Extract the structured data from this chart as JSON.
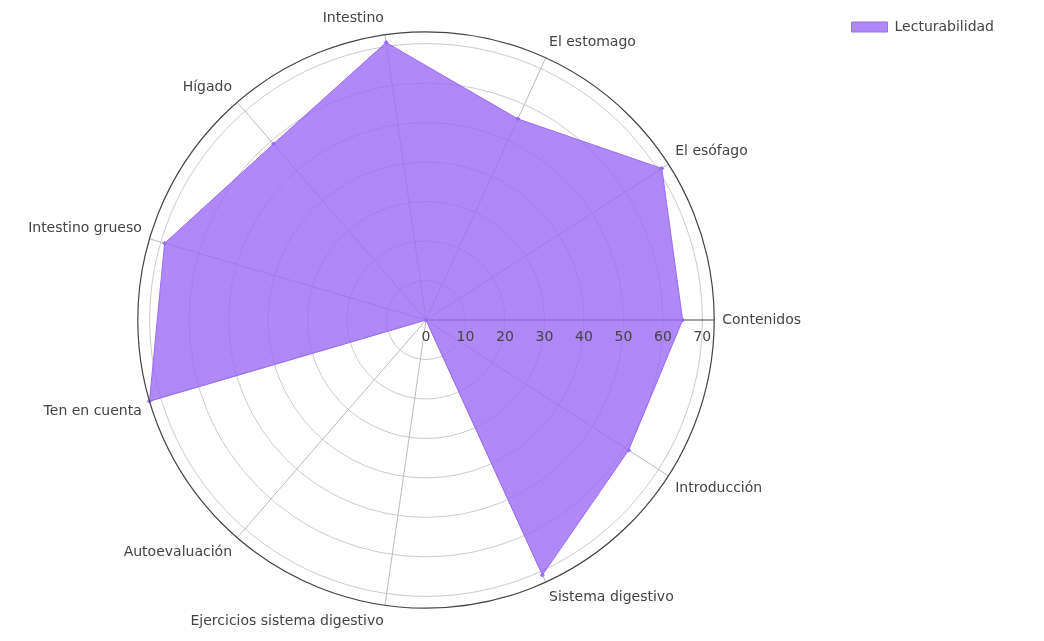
{
  "chart_data": {
    "type": "radar",
    "categories": [
      "Contenidos",
      "Introducción",
      "Sistema digestivo",
      "Ejercicios sistema digestivo",
      "Autoevaluación",
      "Ten en cuenta",
      "Intestino grueso",
      "Hígado",
      "Intestino",
      "El estomago",
      "El esófago"
    ],
    "series": [
      {
        "name": "Lecturabilidad",
        "color": "#9b6cf5",
        "values": [
          65,
          61,
          71,
          0,
          0,
          73,
          69,
          59,
          71,
          56,
          71
        ]
      }
    ],
    "ylim": [
      0,
      73
    ],
    "yticks": [
      0,
      10,
      20,
      30,
      40,
      50,
      60,
      70
    ],
    "grid": true,
    "legend": "top right",
    "marker": "diamond"
  }
}
